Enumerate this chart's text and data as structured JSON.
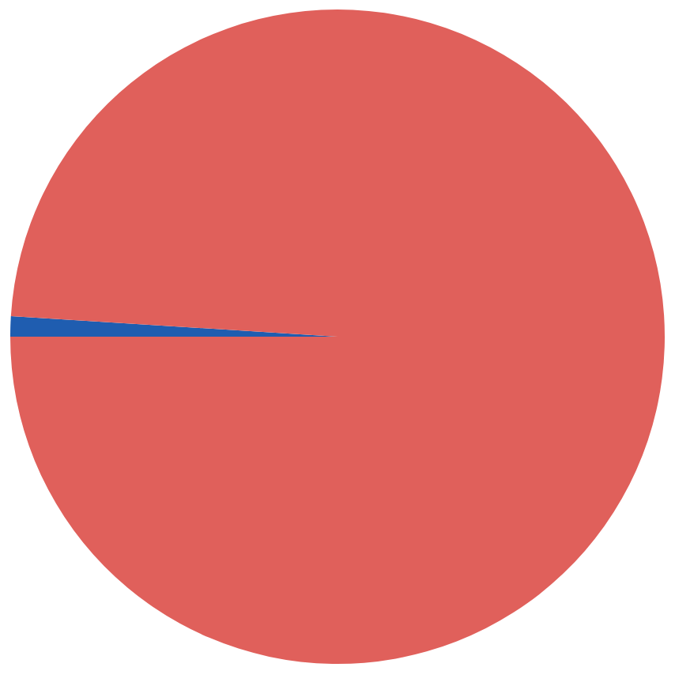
{
  "chart_data": {
    "type": "pie",
    "categories": [
      null,
      null
    ],
    "values": [
      1,
      99
    ],
    "colors": [
      "#1f5db0",
      "#e0605b"
    ]
  }
}
